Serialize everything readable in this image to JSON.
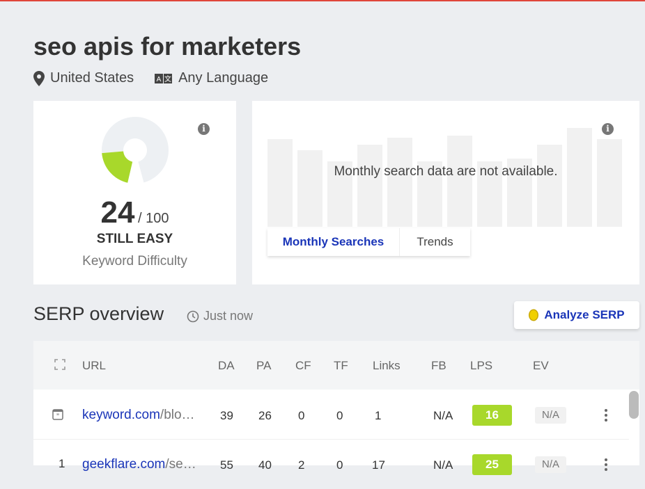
{
  "header": {
    "title": "seo apis for marketers",
    "location": "United States",
    "language": "Any Language"
  },
  "difficulty": {
    "score": "24",
    "max": "/ 100",
    "level": "STILL EASY",
    "label": "Keyword Difficulty",
    "value_percent": 24,
    "color": "#a8d82b"
  },
  "searches": {
    "message": "Monthly search data are not available.",
    "tabs": [
      "Monthly Searches",
      "Trends"
    ],
    "active_tab": "Monthly Searches"
  },
  "serp": {
    "title": "SERP overview",
    "updated": "Just now",
    "analyze_label": "Analyze SERP",
    "columns": [
      "URL",
      "DA",
      "PA",
      "CF",
      "TF",
      "Links",
      "FB",
      "LPS",
      "EV"
    ],
    "rows": [
      {
        "rank": "",
        "domain": "keyword.com",
        "path": "/blo…",
        "da": "39",
        "pa": "26",
        "cf": "0",
        "tf": "0",
        "links": "1",
        "fb": "N/A",
        "lps": "16",
        "ev": "N/A"
      },
      {
        "rank": "1",
        "domain": "geekflare.com",
        "path": "/se…",
        "da": "55",
        "pa": "40",
        "cf": "2",
        "tf": "0",
        "links": "17",
        "fb": "N/A",
        "lps": "25",
        "ev": "N/A"
      }
    ]
  }
}
